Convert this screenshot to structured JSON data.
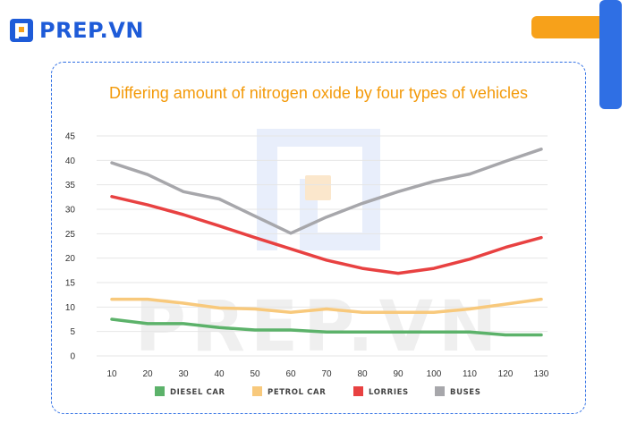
{
  "brand": {
    "name": "PREP.VN",
    "color": "#1e5bd8"
  },
  "watermark": "PREP.VN",
  "colors": {
    "accent_orange": "#f7a11a",
    "accent_blue": "#2f6fe4"
  },
  "chart_data": {
    "type": "line",
    "title": "Differing amount of nitrogen oxide by four types of vehicles",
    "xlabel": "",
    "ylabel": "",
    "x": [
      10,
      20,
      30,
      40,
      50,
      60,
      70,
      80,
      90,
      100,
      110,
      120,
      130
    ],
    "xlim": [
      10,
      130
    ],
    "ylim": [
      0,
      45
    ],
    "yticks": [
      0,
      5,
      10,
      15,
      20,
      25,
      30,
      35,
      40,
      45
    ],
    "grid": "horizontal",
    "legend": "bottom",
    "series": [
      {
        "name": "DIESEL CAR",
        "color": "#5cb26a",
        "values": [
          7.5,
          6.6,
          6.6,
          5.8,
          5.3,
          5.3,
          4.9,
          4.9,
          4.9,
          4.9,
          4.9,
          4.3,
          4.3
        ]
      },
      {
        "name": "PETROL CAR",
        "color": "#f8c97c",
        "values": [
          11.6,
          11.6,
          10.8,
          9.8,
          9.6,
          8.9,
          9.6,
          8.9,
          8.9,
          8.9,
          9.6,
          10.6,
          11.6
        ]
      },
      {
        "name": "LORRIES",
        "color": "#e84141",
        "values": [
          32.6,
          30.9,
          28.9,
          26.6,
          24.2,
          21.9,
          19.6,
          17.9,
          16.9,
          17.9,
          19.8,
          22.2,
          24.2
        ]
      },
      {
        "name": "BUSES",
        "color": "#a7a7ab",
        "values": [
          39.5,
          37.1,
          33.6,
          32.1,
          28.6,
          25.1,
          28.4,
          31.2,
          33.6,
          35.7,
          37.2,
          39.8,
          42.3
        ]
      }
    ]
  }
}
